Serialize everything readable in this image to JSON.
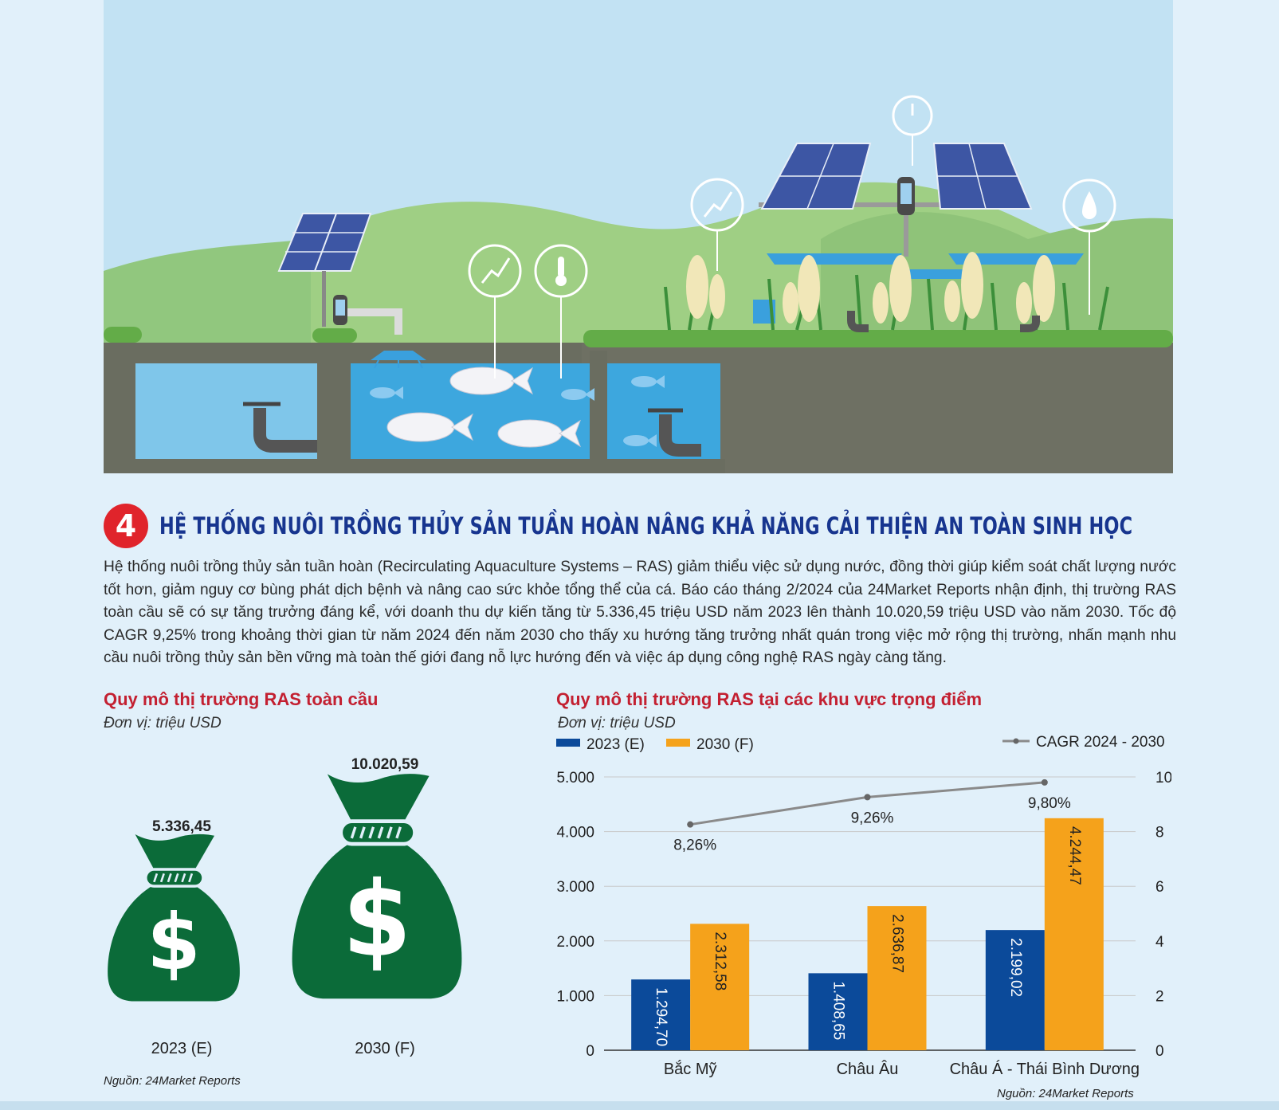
{
  "section": {
    "number": "4",
    "title": "HỆ THỐNG NUÔI TRỒNG THỦY SẢN TUẦN HOÀN NÂNG KHẢ NĂNG CẢI THIỆN AN TOÀN SINH HỌC"
  },
  "intro": "Hệ thống nuôi trồng thủy sản tuần hoàn (Recirculating Aquaculture Systems – RAS) giảm thiểu việc sử dụng nước, đồng thời giúp kiểm soát chất lượng nước tốt hơn, giảm nguy cơ bùng phát dịch bệnh và nâng cao sức khỏe tổng thể của cá. Báo cáo tháng 2/2024 của 24Market Reports nhận định, thị trường RAS toàn cầu sẽ có sự tăng trưởng đáng kể, với doanh thu dự kiến tăng từ 5.336,45 triệu USD năm 2023 lên thành 10.020,59 triệu USD vào năm 2030. Tốc độ CAGR 9,25% trong khoảng thời gian từ năm 2024 đến năm 2030 cho thấy xu hướng tăng trưởng nhất quán trong việc mở rộng thị trường, nhấn mạnh nhu cầu nuôi trồng thủy sản bền vững mà toàn thế giới đang nỗ lực hướng đến và việc áp dụng công nghệ RAS ngày càng tăng.",
  "illustration_icons": [
    "solar-panel-icon",
    "sensor-icon",
    "growth-chart-icon",
    "thermometer-icon",
    "gauge-icon",
    "water-drop-icon",
    "fish-icon",
    "faucet-icon",
    "sprinkler-icon",
    "rice-plant-icon"
  ],
  "colors": {
    "blue_2023": "#0b4a9a",
    "orange_2030": "#f5a21b",
    "cagr_line": "#8a8a8a",
    "bag_green": "#0b6b39",
    "title_red": "#c32031",
    "heading_blue": "#17358f",
    "badge_red": "#e0242b"
  },
  "chart_data": [
    {
      "type": "pictograph",
      "title": "Quy mô thị trường RAS toàn cầu",
      "unit": "Đơn vị: triệu USD",
      "categories": [
        "2023 (E)",
        "2030 (F)"
      ],
      "values": [
        5336.45,
        10020.59
      ],
      "value_labels": [
        "5.336,45",
        "10.020,59"
      ],
      "source": "Nguồn: 24Market Reports"
    },
    {
      "type": "bar",
      "title": "Quy mô thị trường RAS tại các khu vực trọng điểm",
      "unit": "Đơn vị: triệu USD",
      "categories": [
        "Bắc Mỹ",
        "Châu Âu",
        "Châu Á - Thái Bình Dương"
      ],
      "series": [
        {
          "name": "2023 (E)",
          "values": [
            1294.7,
            1408.65,
            2199.02
          ],
          "labels": [
            "1.294,70",
            "1.408,65",
            "2.199,02"
          ],
          "color": "#0b4a9a"
        },
        {
          "name": "2030 (F)",
          "values": [
            2312.58,
            2636.87,
            4244.47
          ],
          "labels": [
            "2.312,58",
            "2.636,87",
            "4.244,47"
          ],
          "color": "#f5a21b"
        }
      ],
      "line_series": {
        "name": "CAGR 2024 - 2030",
        "type": "line",
        "axis": "right",
        "values": [
          8.26,
          9.26,
          9.8
        ],
        "labels": [
          "8,26%",
          "9,26%",
          "9,80%"
        ],
        "color": "#8a8a8a"
      },
      "y_left": {
        "ticks": [
          0,
          1000,
          2000,
          3000,
          4000,
          5000
        ],
        "tick_labels": [
          "0",
          "1.000",
          "2.000",
          "3.000",
          "4.000",
          "5.000"
        ],
        "ylim": [
          0,
          5000
        ]
      },
      "y_right": {
        "ticks": [
          0,
          2,
          4,
          6,
          8,
          10
        ],
        "tick_labels": [
          "0",
          "2",
          "4",
          "6",
          "8",
          "10"
        ],
        "ylim": [
          0,
          10
        ]
      },
      "grid": true,
      "legend": "top",
      "source": "Nguồn: 24Market Reports"
    }
  ]
}
